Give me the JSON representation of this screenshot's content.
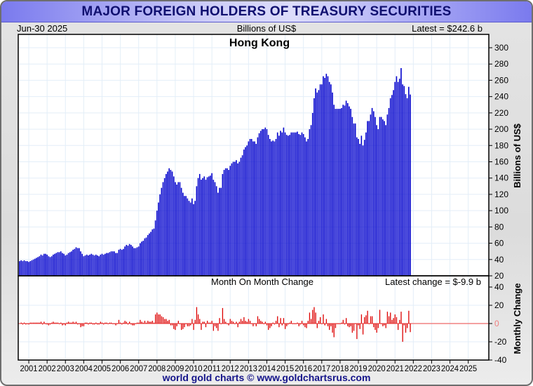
{
  "header": {
    "title": "MAJOR FOREIGN HOLDERS OF TREASURY SECURITIES",
    "date": "Jun-30  2025",
    "units": "Billions of US$",
    "latest": "Latest = $242.6 b"
  },
  "footer": "world gold charts © www.goldchartsrus.com",
  "colors": {
    "bars": "#0000cc",
    "change": "#dd0000",
    "zero_line": "#f08080",
    "grid": "#e3eef8",
    "title_text": "#101070"
  },
  "chart_data": [
    {
      "type": "bar",
      "title": "Hong Kong",
      "ylabel": "Billions of US$",
      "ylim": [
        20,
        300
      ],
      "yticks": [
        20,
        40,
        60,
        80,
        100,
        120,
        140,
        160,
        180,
        200,
        220,
        240,
        260,
        280,
        300
      ],
      "x_start": "2000-07",
      "frequency": "monthly",
      "xticks": [
        "2001",
        "2002",
        "2003",
        "2004",
        "2005",
        "2006",
        "2007",
        "2008",
        "2009",
        "2010",
        "2011",
        "2012",
        "2013",
        "2014",
        "2015",
        "2016",
        "2017",
        "2018",
        "2019",
        "2020",
        "2021",
        "2022",
        "2023",
        "2024",
        "2025"
      ],
      "values": [
        38,
        39,
        38,
        39,
        38,
        38,
        37,
        38,
        39,
        40,
        41,
        42,
        43,
        44,
        46,
        45,
        47,
        47,
        46,
        44,
        43,
        44,
        46,
        47,
        48,
        49,
        49,
        50,
        48,
        47,
        45,
        46,
        48,
        49,
        50,
        52,
        53,
        55,
        54,
        54,
        50,
        47,
        44,
        45,
        46,
        45,
        46,
        47,
        46,
        45,
        46,
        45,
        44,
        46,
        47,
        46,
        47,
        48,
        48,
        49,
        50,
        50,
        50,
        48,
        48,
        52,
        53,
        52,
        53,
        56,
        58,
        57,
        59,
        58,
        56,
        54,
        54,
        55,
        56,
        60,
        62,
        63,
        66,
        67,
        70,
        72,
        74,
        77,
        78,
        88,
        100,
        110,
        120,
        128,
        135,
        140,
        145,
        148,
        152,
        150,
        148,
        142,
        135,
        132,
        135,
        135,
        128,
        122,
        118,
        118,
        115,
        112,
        110,
        115,
        108,
        112,
        130,
        140,
        145,
        138,
        140,
        142,
        138,
        141,
        142,
        143,
        146,
        138,
        135,
        130,
        122,
        128,
        128,
        145,
        150,
        152,
        152,
        150,
        155,
        158,
        160,
        160,
        162,
        158,
        160,
        165,
        168,
        175,
        178,
        180,
        185,
        188,
        188,
        185,
        185,
        182,
        190,
        195,
        198,
        200,
        200,
        202,
        200,
        193,
        188,
        185,
        186,
        185,
        188,
        196,
        192,
        198,
        196,
        202,
        196,
        193,
        192,
        193,
        196,
        196,
        196,
        196,
        197,
        194,
        193,
        196,
        194,
        190,
        185,
        188,
        200,
        205,
        220,
        238,
        250,
        245,
        248,
        255,
        255,
        265,
        263,
        268,
        265,
        258,
        255,
        245,
        230,
        225,
        225,
        225,
        225,
        226,
        230,
        229,
        235,
        232,
        228,
        225,
        215,
        207,
        207,
        190,
        188,
        182,
        192,
        180,
        187,
        196,
        210,
        210,
        218,
        226,
        222,
        215,
        205,
        200,
        215,
        215,
        212,
        210,
        205,
        218,
        226,
        238,
        242,
        248,
        258,
        265,
        258,
        262,
        275,
        255,
        253,
        243,
        238,
        252,
        242.6
      ]
    },
    {
      "type": "bar",
      "title": "Month On Month Change",
      "ylabel": "Monthly Change",
      "ylim": [
        -40,
        40
      ],
      "yticks": [
        -40,
        -20,
        0,
        20,
        40
      ],
      "annotation": "Latest change = $-9.9 b"
    }
  ]
}
